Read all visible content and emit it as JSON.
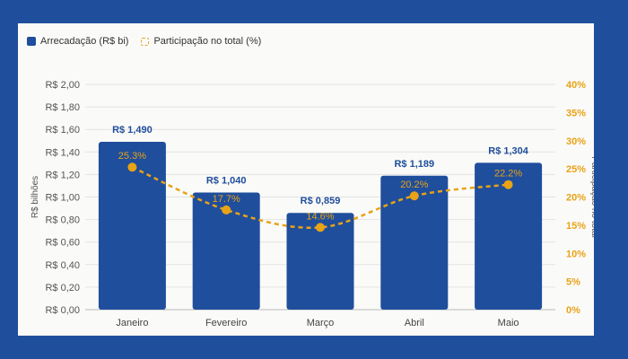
{
  "colors": {
    "bar": "#1f4e9c",
    "line": "#e8a317",
    "background": "#1f4e9c",
    "panel": "#fafaf8"
  },
  "chart_data": {
    "type": "bar",
    "categories": [
      "Janeiro",
      "Fevereiro",
      "Março",
      "Abril",
      "Maio"
    ],
    "series": [
      {
        "name": "Arrecadação (R$ bi)",
        "type": "bar",
        "axis": "left",
        "values": [
          1.49,
          1.04,
          0.859,
          1.189,
          1.304
        ],
        "labels": [
          "R$ 1,490",
          "R$ 1,040",
          "R$ 0,859",
          "R$ 1,189",
          "R$ 1,304"
        ]
      },
      {
        "name": "Participação no total (%)",
        "type": "line",
        "axis": "right",
        "values": [
          25.3,
          17.7,
          14.6,
          20.2,
          22.2
        ],
        "labels": [
          "25.3%",
          "17.7%",
          "14.6%",
          "20.2%",
          "22.2%"
        ]
      }
    ],
    "ylabel": "R$ bilhões",
    "y2label": "Participação no total",
    "ylim": [
      0,
      2.0
    ],
    "y2lim": [
      0,
      40
    ],
    "yticks": [
      "R$ 0,00",
      "R$ 0,20",
      "R$ 0,40",
      "R$ 0,60",
      "R$ 0,80",
      "R$ 1,00",
      "R$ 1,20",
      "R$ 1,40",
      "R$ 1,60",
      "R$ 1,80",
      "R$ 2,00"
    ],
    "y2ticks": [
      "0%",
      "5%",
      "10%",
      "15%",
      "20%",
      "25%",
      "30%",
      "35%",
      "40%"
    ],
    "legend": "top-left",
    "grid": true
  }
}
